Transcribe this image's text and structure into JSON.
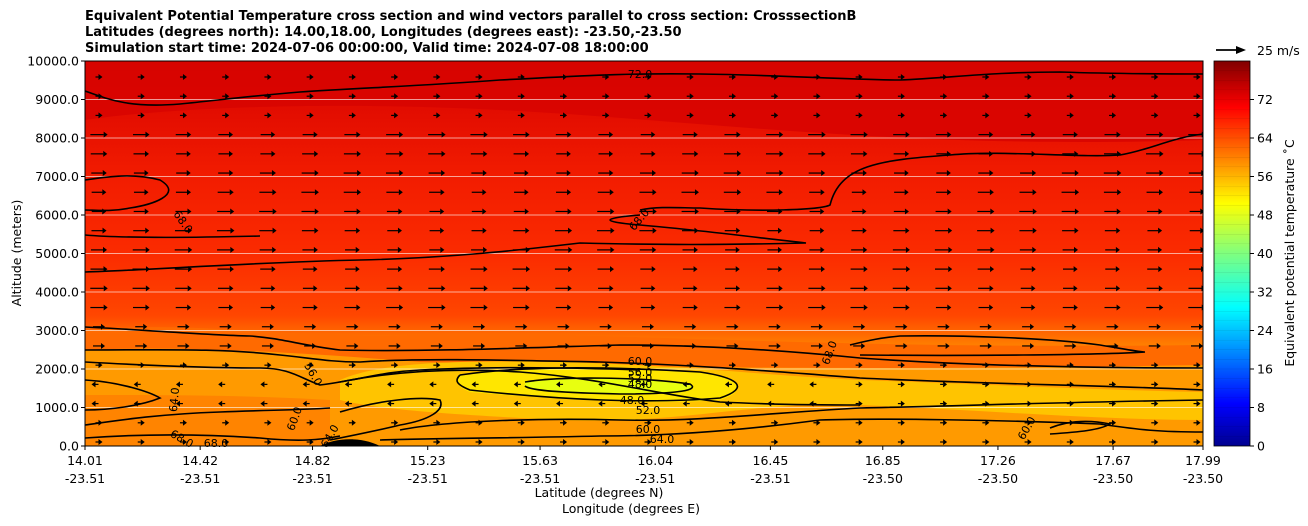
{
  "titles": [
    "Equivalent Potential Temperature cross section and wind vectors parallel to cross section: CrosssectionB",
    "Latitudes (degrees north): 14.00,18.00, Longitudes (degrees east): -23.50,-23.50",
    "Simulation start time: 2024-07-06 00:00:00, Valid time: 2024-07-08 18:00:00"
  ],
  "chart_data": {
    "type": "contourf_cross_section",
    "ylabel": "Altitude (meters)",
    "xlabel_line1": "Latitude (degrees N)",
    "xlabel_line2": "Longitude (degrees E)",
    "ylim": [
      0,
      10000
    ],
    "yticks": [
      "0.0",
      "1000.0",
      "2000.0",
      "3000.0",
      "4000.0",
      "5000.0",
      "6000.0",
      "7000.0",
      "8000.0",
      "9000.0",
      "10000.0"
    ],
    "x_lat_ticks": [
      "14.01",
      "14.42",
      "14.82",
      "15.23",
      "15.63",
      "16.04",
      "16.45",
      "16.85",
      "17.26",
      "17.67",
      "17.99"
    ],
    "x_lon_ticks": [
      "-23.51",
      "-23.51",
      "-23.51",
      "-23.51",
      "-23.51",
      "-23.51",
      "-23.51",
      "-23.50",
      "-23.50",
      "-23.50",
      "-23.50"
    ],
    "colorbar": {
      "label": "Equivalent potential temperature ˚C",
      "range": [
        0,
        80
      ],
      "ticks": [
        "0",
        "8",
        "16",
        "24",
        "32",
        "40",
        "48",
        "56",
        "64",
        "72"
      ]
    },
    "quiver_key": "25 m/s",
    "contour_labels": [
      "72.0",
      "68.0",
      "68.0",
      "68.0",
      "64.0",
      "60.0",
      "56.0",
      "52.0",
      "48.0",
      "48.0",
      "52.0",
      "60.0",
      "64.0",
      "56.0",
      "60.0",
      "60.0",
      "64.0",
      "68.0",
      "68.0",
      "64.0",
      "60.0"
    ]
  }
}
